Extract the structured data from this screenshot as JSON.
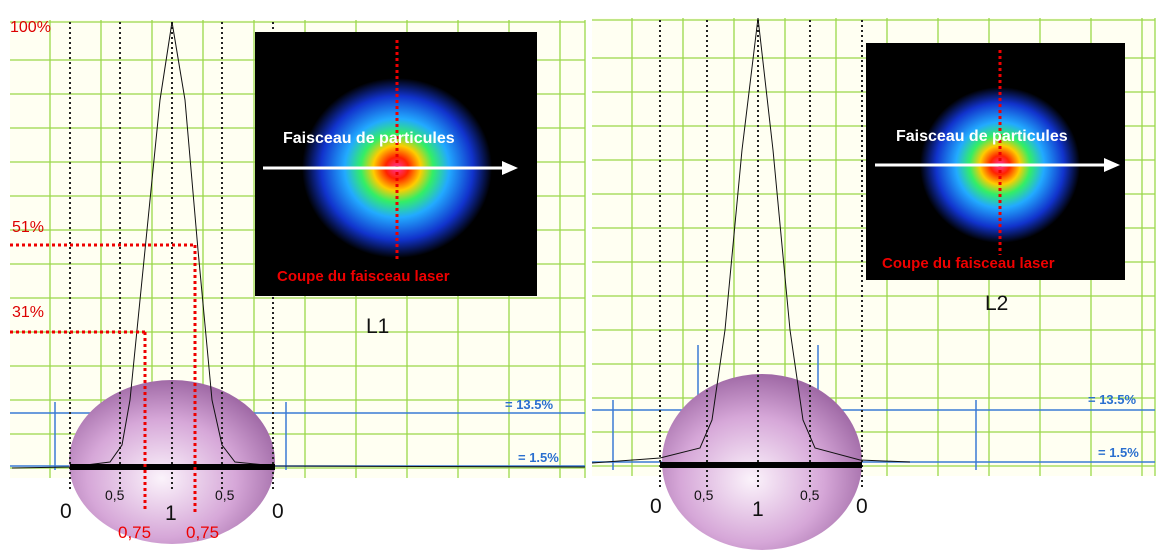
{
  "panels": [
    {
      "label": "L1",
      "inset": {
        "beam": "Faisceau de particules",
        "cut": "Coupe du faisceau laser"
      },
      "levels": [
        "100%",
        "51%",
        "31%"
      ],
      "thresholds": [
        "= 13.5%",
        "= 1.5%"
      ],
      "axis": [
        "0",
        "0,5",
        "1",
        "0,5",
        "0"
      ],
      "marks": [
        "0,75",
        "0,75"
      ]
    },
    {
      "label": "L2",
      "inset": {
        "beam": "Faisceau de particules",
        "cut": "Coupe du faisceau laser"
      },
      "thresholds": [
        "= 13.5%",
        "= 1.5%"
      ],
      "axis": [
        "0",
        "0,5",
        "1",
        "0,5",
        "0"
      ]
    }
  ]
}
